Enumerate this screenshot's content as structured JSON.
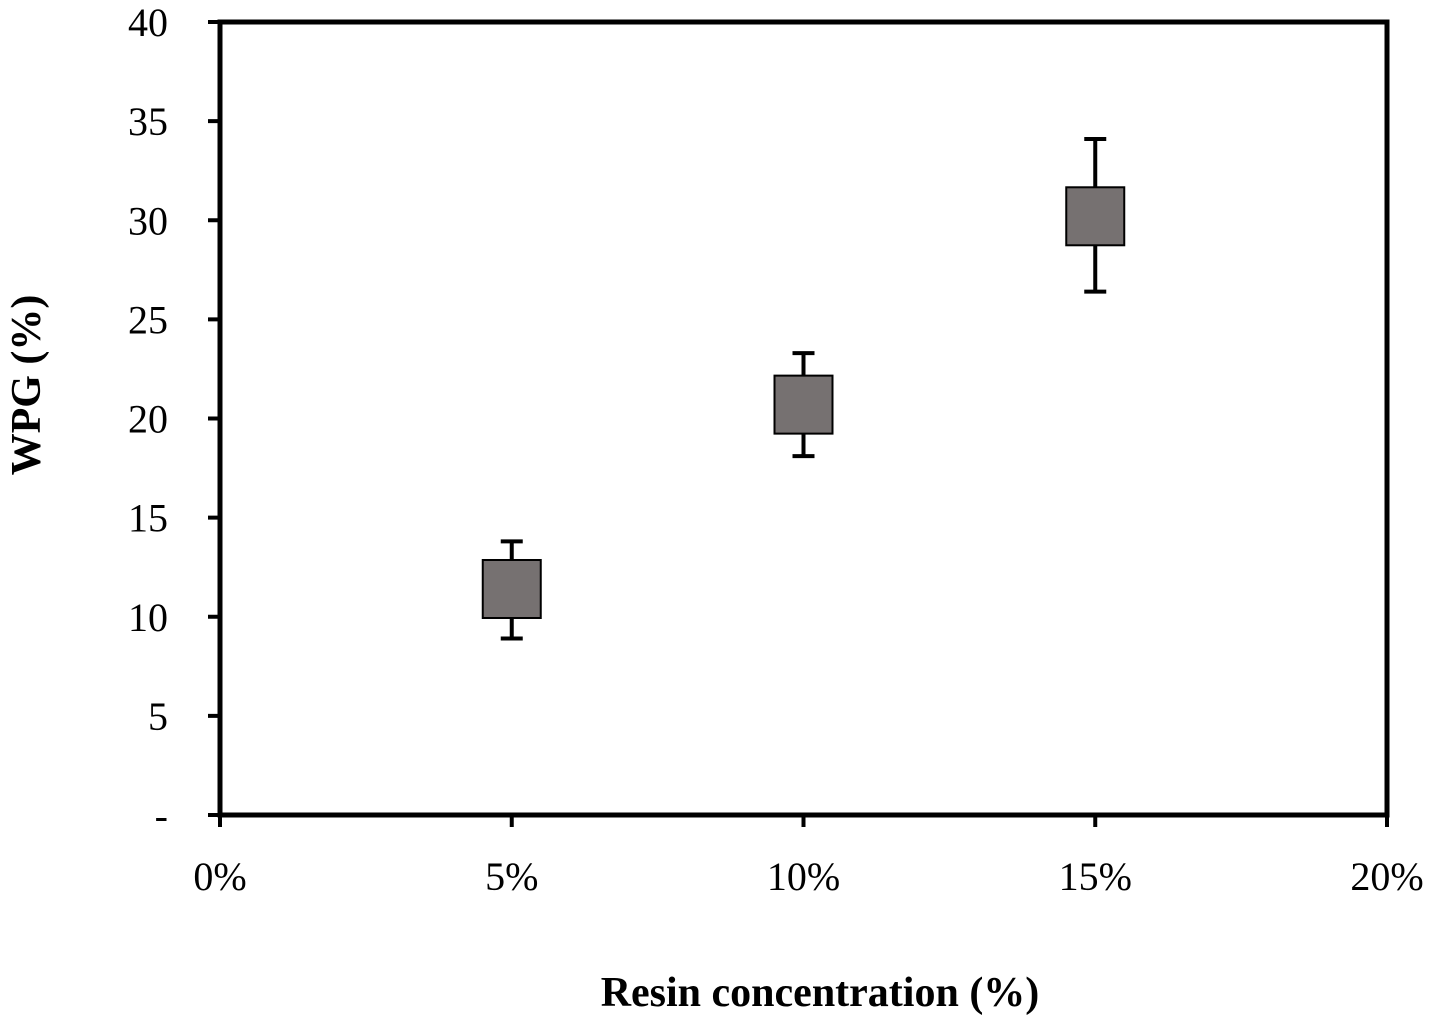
{
  "chart_data": {
    "type": "scatter",
    "title": "",
    "xlabel": "Resin concentration (%)",
    "ylabel": "WPG (%)",
    "xlim": [
      0,
      20
    ],
    "ylim": [
      0,
      40
    ],
    "x_ticks": [
      0,
      5,
      10,
      15,
      20
    ],
    "x_tick_labels": [
      "0%",
      "5%",
      "10%",
      "15%",
      "20%"
    ],
    "y_ticks": [
      0,
      5,
      10,
      15,
      20,
      25,
      30,
      35,
      40
    ],
    "y_tick_labels": [
      "-",
      "5",
      "10",
      "15",
      "20",
      "25",
      "30",
      "35",
      "40"
    ],
    "grid": false,
    "marker": "square",
    "marker_color": "#767171",
    "series": [
      {
        "x": [
          5,
          10,
          15
        ],
        "y": [
          11.4,
          20.7,
          30.2
        ],
        "error_low": [
          8.9,
          18.1,
          26.4
        ],
        "error_high": [
          13.8,
          23.3,
          34.1
        ]
      }
    ]
  }
}
